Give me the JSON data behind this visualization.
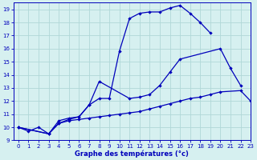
{
  "xlabel": "Graphe des températures (°c)",
  "bg_color": "#d6f0f0",
  "line_color": "#0000bb",
  "grid_color": "#b0d8d8",
  "xlim": [
    -0.5,
    23
  ],
  "ylim": [
    9,
    19.5
  ],
  "xticks": [
    0,
    1,
    2,
    3,
    4,
    5,
    6,
    7,
    8,
    9,
    10,
    11,
    12,
    13,
    14,
    15,
    16,
    17,
    18,
    19,
    20,
    21,
    22,
    23
  ],
  "yticks": [
    9,
    10,
    11,
    12,
    13,
    14,
    15,
    16,
    17,
    18,
    19
  ],
  "line1": {
    "x": [
      0,
      1,
      2,
      3,
      4,
      5,
      6,
      7,
      8,
      9,
      10,
      11,
      12,
      13,
      14,
      15,
      16,
      17,
      18,
      19
    ],
    "y": [
      10.0,
      9.7,
      10.0,
      9.5,
      10.5,
      10.7,
      10.8,
      11.7,
      12.2,
      12.2,
      15.8,
      18.3,
      18.7,
      18.8,
      18.8,
      19.1,
      19.3,
      18.7,
      18.0,
      17.2
    ]
  },
  "line2": {
    "x": [
      0,
      3,
      4,
      5,
      6,
      7,
      8,
      11,
      12,
      13,
      14,
      15,
      16,
      20,
      21,
      22
    ],
    "y": [
      10.0,
      9.5,
      10.3,
      10.6,
      10.8,
      11.7,
      13.5,
      12.2,
      12.3,
      12.5,
      13.2,
      14.2,
      15.2,
      16.0,
      14.5,
      13.2
    ]
  },
  "line3": {
    "x": [
      0,
      3,
      4,
      5,
      6,
      7,
      8,
      9,
      10,
      11,
      12,
      13,
      14,
      15,
      16,
      17,
      18,
      19,
      20,
      22,
      23
    ],
    "y": [
      10.0,
      9.5,
      10.3,
      10.5,
      10.6,
      10.7,
      10.8,
      10.9,
      11.0,
      11.1,
      11.2,
      11.4,
      11.6,
      11.8,
      12.0,
      12.2,
      12.3,
      12.5,
      12.7,
      12.8,
      12.0
    ]
  }
}
